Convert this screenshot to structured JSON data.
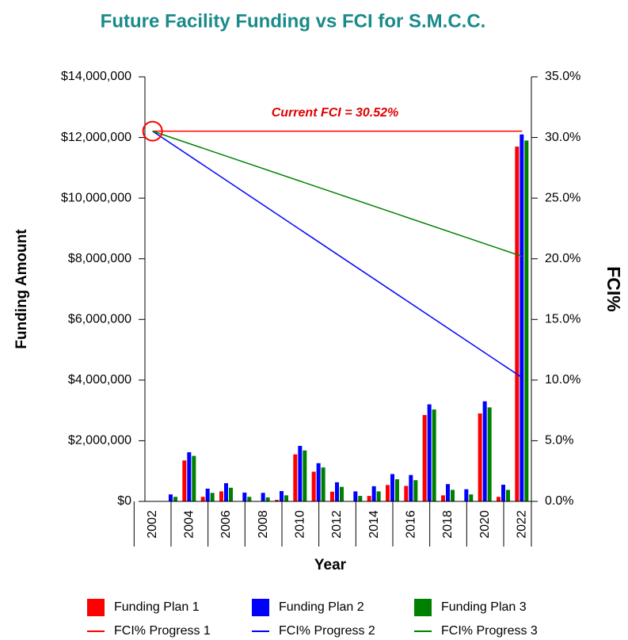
{
  "chart_data": {
    "type": "bar",
    "title": "Future Facility Funding vs FCI for S.M.C.C.",
    "xlabel": "Year",
    "ylabel": "Funding Amount",
    "y2label": "FCI%",
    "annotation": "Current FCI = 30.52%",
    "categories": [
      "2002",
      null,
      "2004",
      null,
      "2006",
      null,
      "2008",
      null,
      "2010",
      null,
      "2012",
      null,
      "2014",
      null,
      "2016",
      null,
      "2018",
      null,
      "2020",
      null,
      "2022"
    ],
    "ylim": [
      0,
      14000000
    ],
    "yticks": [
      {
        "value": 0,
        "label": "$0"
      },
      {
        "value": 2000000,
        "label": "$2,000,000"
      },
      {
        "value": 4000000,
        "label": "$4,000,000"
      },
      {
        "value": 6000000,
        "label": "$6,000,000"
      },
      {
        "value": 8000000,
        "label": "$8,000,000"
      },
      {
        "value": 10000000,
        "label": "$10,000,000"
      },
      {
        "value": 12000000,
        "label": "$12,000,000"
      },
      {
        "value": 14000000,
        "label": "$14,000,000"
      }
    ],
    "y2lim": [
      0,
      35
    ],
    "y2ticks": [
      {
        "value": 0,
        "label": "0.0%"
      },
      {
        "value": 5,
        "label": "5.0%"
      },
      {
        "value": 10,
        "label": "10.0%"
      },
      {
        "value": 15,
        "label": "15.0%"
      },
      {
        "value": 20,
        "label": "20.0%"
      },
      {
        "value": 25,
        "label": "25.0%"
      },
      {
        "value": 30,
        "label": "30.0%"
      },
      {
        "value": 35,
        "label": "35.0%"
      }
    ],
    "series": [
      {
        "name": "Funding Plan 1",
        "color": "#ff0000",
        "values": [
          0,
          0,
          1350000,
          150000,
          330000,
          0,
          0,
          50000,
          1550000,
          980000,
          320000,
          0,
          180000,
          540000,
          510000,
          2850000,
          200000,
          0,
          2900000,
          150000,
          11700000
        ]
      },
      {
        "name": "Funding Plan 2",
        "color": "#0000ff",
        "values": [
          0,
          230000,
          1620000,
          420000,
          600000,
          290000,
          280000,
          340000,
          1830000,
          1260000,
          630000,
          330000,
          500000,
          900000,
          870000,
          3200000,
          570000,
          400000,
          3300000,
          550000,
          12100000
        ]
      },
      {
        "name": "Funding Plan 3",
        "color": "#008000",
        "values": [
          0,
          150000,
          1500000,
          280000,
          450000,
          150000,
          130000,
          200000,
          1680000,
          1120000,
          480000,
          180000,
          330000,
          730000,
          700000,
          3030000,
          380000,
          230000,
          3100000,
          380000,
          11900000
        ]
      },
      {
        "name": "FCI% Progress 1",
        "type": "line",
        "axis": "y2",
        "color": "#ff0000",
        "x": [
          "2002",
          "2022"
        ],
        "values": [
          30.52,
          30.52
        ]
      },
      {
        "name": "FCI% Progress 2",
        "type": "line",
        "axis": "y2",
        "color": "#0000ff",
        "x": [
          "2002",
          "2022"
        ],
        "values": [
          30.52,
          10.2
        ]
      },
      {
        "name": "FCI% Progress 3",
        "type": "line",
        "axis": "y2",
        "color": "#008000",
        "x": [
          "2002",
          "2022"
        ],
        "values": [
          30.52,
          20.2
        ]
      }
    ]
  }
}
